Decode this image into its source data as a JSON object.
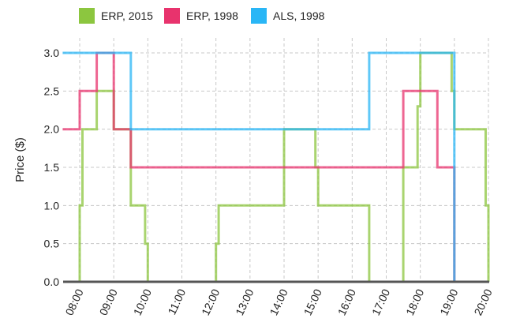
{
  "chart_data": {
    "type": "line",
    "step": true,
    "ylabel": "Price ($)",
    "xlabel": "",
    "x_ticks": [
      "08:00",
      "09:00",
      "10:00",
      "11:00",
      "12:00",
      "13:00",
      "14:00",
      "15:00",
      "16:00",
      "17:00",
      "18:00",
      "19:00",
      "20:00"
    ],
    "y_ticks": [
      "0.0",
      "0.5",
      "1.0",
      "1.5",
      "2.0",
      "2.5",
      "3.0"
    ],
    "xlim": [
      7.5,
      20.1
    ],
    "ylim": [
      0,
      3.2
    ],
    "grid": true,
    "legend": "top",
    "series": [
      {
        "name": "ERP, 2015",
        "color": "#8cc63f",
        "points": [
          [
            8.0,
            0
          ],
          [
            8.0,
            1.0
          ],
          [
            8.08,
            1.0
          ],
          [
            8.08,
            2.0
          ],
          [
            8.5,
            2.0
          ],
          [
            8.5,
            2.5
          ],
          [
            9.0,
            2.5
          ],
          [
            9.0,
            2.0
          ],
          [
            9.5,
            2.0
          ],
          [
            9.5,
            1.0
          ],
          [
            9.92,
            1.0
          ],
          [
            9.92,
            0.5
          ],
          [
            10.0,
            0.5
          ],
          [
            10.0,
            0
          ],
          [
            12.0,
            0
          ],
          [
            12.0,
            0.5
          ],
          [
            12.08,
            0.5
          ],
          [
            12.08,
            1.0
          ],
          [
            14.0,
            1.0
          ],
          [
            14.0,
            2.0
          ],
          [
            14.92,
            2.0
          ],
          [
            14.92,
            1.5
          ],
          [
            15.0,
            1.5
          ],
          [
            15.0,
            1.0
          ],
          [
            16.5,
            1.0
          ],
          [
            16.5,
            0
          ],
          [
            17.5,
            0
          ],
          [
            17.5,
            1.5
          ],
          [
            17.92,
            1.5
          ],
          [
            17.92,
            2.3
          ],
          [
            18.0,
            2.3
          ],
          [
            18.0,
            3.0
          ],
          [
            18.92,
            3.0
          ],
          [
            18.92,
            2.5
          ],
          [
            19.0,
            2.5
          ],
          [
            19.0,
            2.0
          ],
          [
            19.92,
            2.0
          ],
          [
            19.92,
            1.0
          ],
          [
            20.0,
            1.0
          ],
          [
            20.0,
            0
          ]
        ]
      },
      {
        "name": "ERP, 1998",
        "color": "#e8336d",
        "points": [
          [
            7.5,
            2.0
          ],
          [
            8.0,
            2.0
          ],
          [
            8.0,
            2.5
          ],
          [
            8.5,
            2.5
          ],
          [
            8.5,
            3.0
          ],
          [
            9.0,
            3.0
          ],
          [
            9.0,
            2.0
          ],
          [
            9.5,
            2.0
          ],
          [
            9.5,
            1.5
          ],
          [
            17.5,
            1.5
          ],
          [
            17.5,
            2.5
          ],
          [
            18.5,
            2.5
          ],
          [
            18.5,
            1.5
          ],
          [
            19.0,
            1.5
          ],
          [
            19.0,
            0
          ]
        ]
      },
      {
        "name": "ALS, 1998",
        "color": "#29b6f6",
        "points": [
          [
            7.5,
            3.0
          ],
          [
            9.5,
            3.0
          ],
          [
            9.5,
            2.0
          ],
          [
            16.5,
            2.0
          ],
          [
            16.5,
            3.0
          ],
          [
            19.0,
            3.0
          ],
          [
            19.0,
            0
          ]
        ]
      }
    ]
  }
}
